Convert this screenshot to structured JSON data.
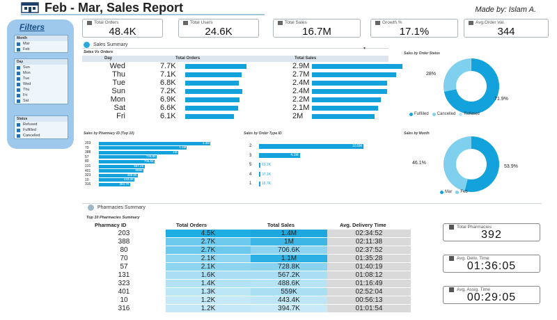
{
  "header": {
    "title": "Feb - Mar, Sales Report",
    "made_by": "Made by: Islam A."
  },
  "filters": {
    "title": "Filters",
    "month": {
      "heading": "Month",
      "items": [
        "Mar",
        "Feb"
      ]
    },
    "day": {
      "heading": "Day",
      "items": [
        "Sun",
        "Mon",
        "Tue",
        "Wed",
        "Thu",
        "Fri",
        "Sat"
      ]
    },
    "status": {
      "heading": "Status",
      "items": [
        "Refused",
        "Fulfilled",
        "Cancelled"
      ]
    }
  },
  "kpis": [
    {
      "label": "Total Orders",
      "value": "48.4K"
    },
    {
      "label": "Total Users",
      "value": "24.6K"
    },
    {
      "label": "Total Sales",
      "value": "16.7M"
    },
    {
      "label": "Growth %",
      "value": "17.1%"
    },
    {
      "label": "Avg.Order Val.",
      "value": "344"
    }
  ],
  "sales_summary": {
    "title": "Sales Summary",
    "subtitle": "Sales Vs Orders",
    "headers": {
      "day": "Day",
      "orders": "Total Orders",
      "sales": "Total Sales"
    },
    "rows": [
      {
        "day": "Wed",
        "orders": "7.7K",
        "orders_frac": 1.0,
        "sales": "2.9M",
        "sales_frac": 1.0
      },
      {
        "day": "Thu",
        "orders": "7.1K",
        "orders_frac": 0.92,
        "sales": "2.7M",
        "sales_frac": 0.93
      },
      {
        "day": "Tue",
        "orders": "6.8K",
        "orders_frac": 0.88,
        "sales": "2.4M",
        "sales_frac": 0.83
      },
      {
        "day": "Sun",
        "orders": "7.2K",
        "orders_frac": 0.93,
        "sales": "2.4M",
        "sales_frac": 0.83
      },
      {
        "day": "Mon",
        "orders": "6.9K",
        "orders_frac": 0.89,
        "sales": "2.2M",
        "sales_frac": 0.76
      },
      {
        "day": "Sat",
        "orders": "6.6K",
        "orders_frac": 0.86,
        "sales": "2.1M",
        "sales_frac": 0.73
      },
      {
        "day": "Fri",
        "orders": "6.1K",
        "orders_frac": 0.79,
        "sales": "2M",
        "sales_frac": 0.69
      }
    ]
  },
  "order_status": {
    "title": "Sales by Order Status",
    "slices": [
      {
        "name": "Fulfilled",
        "value": 71.9,
        "label": "71.9%",
        "color": "#14a2dc"
      },
      {
        "name": "Cancelled",
        "value": 28.0,
        "label": "28%",
        "color": "#7fd0ee"
      },
      {
        "name": "Refused",
        "value": 0.1,
        "label": "",
        "color": "#b8e4f5"
      }
    ]
  },
  "by_month": {
    "title": "Sales by Month",
    "slices": [
      {
        "name": "Mar",
        "value": 53.9,
        "label": "53.9%",
        "color": "#14a2dc"
      },
      {
        "name": "Feb",
        "value": 46.1,
        "label": "46.1%",
        "color": "#7fd0ee"
      }
    ]
  },
  "by_pharmacy": {
    "title": "Sales by Pharmacy ID (Top 10)",
    "rows": [
      {
        "id": "203",
        "value": "1.4M",
        "frac": 1.0
      },
      {
        "id": "70",
        "value": "1.1M",
        "frac": 0.79
      },
      {
        "id": "388",
        "value": "1M",
        "frac": 0.71
      },
      {
        "id": "57",
        "value": "728.8K",
        "frac": 0.52
      },
      {
        "id": "80",
        "value": "706.6K",
        "frac": 0.5
      },
      {
        "id": "131",
        "value": "567.2K",
        "frac": 0.41
      },
      {
        "id": "401",
        "value": "559K",
        "frac": 0.4
      },
      {
        "id": "323",
        "value": "488.6K",
        "frac": 0.35
      },
      {
        "id": "10",
        "value": "443.4K",
        "frac": 0.32
      },
      {
        "id": "316",
        "value": "394.7K",
        "frac": 0.28
      }
    ]
  },
  "by_order_type": {
    "title": "Sales by Order Type ID",
    "rows": [
      {
        "id": "2",
        "value": "10.5M",
        "frac": 1.0
      },
      {
        "id": "3",
        "value": "4.1M",
        "frac": 0.39
      },
      {
        "id": "5",
        "value": "63.2K",
        "frac": 0.006
      },
      {
        "id": "4",
        "value": "37.1K",
        "frac": 0.004
      },
      {
        "id": "1",
        "value": "16.7K",
        "frac": 0.002
      }
    ]
  },
  "pharmacies": {
    "title": "Pharmacies Summary",
    "subtitle": "Top 10 Pharmacies Summary",
    "headers": {
      "id": "Pharmacy ID",
      "orders": "Total Orders",
      "sales": "Total Sales",
      "delivery": "Avg. Delivery Time"
    },
    "rows": [
      {
        "id": "203",
        "orders": "4.5K",
        "sales": "1.4M",
        "delivery": "02:34:52",
        "o_color": "#1faee3",
        "s_color": "#1da7de"
      },
      {
        "id": "388",
        "orders": "2.7K",
        "sales": "1M",
        "delivery": "02:11:38",
        "o_color": "#6dc9ec",
        "s_color": "#3db6e6"
      },
      {
        "id": "80",
        "orders": "2.7K",
        "sales": "706.6K",
        "delivery": "02:37:52",
        "o_color": "#6dc9ec",
        "s_color": "#8ed4f0"
      },
      {
        "id": "70",
        "orders": "2.1K",
        "sales": "1.1M",
        "delivery": "01:35:28",
        "o_color": "#8ed5f0",
        "s_color": "#2cb0e3"
      },
      {
        "id": "57",
        "orders": "2.1K",
        "sales": "728.8K",
        "delivery": "01:40:19",
        "o_color": "#8ed5f0",
        "s_color": "#8ad3ef"
      },
      {
        "id": "131",
        "orders": "1.6K",
        "sales": "567.2K",
        "delivery": "01:08:12",
        "o_color": "#a9def4",
        "s_color": "#a9def4"
      },
      {
        "id": "323",
        "orders": "1.4K",
        "sales": "488.6K",
        "delivery": "01:16:49",
        "o_color": "#b4e2f5",
        "s_color": "#b6e3f5"
      },
      {
        "id": "401",
        "orders": "1.3K",
        "sales": "559K",
        "delivery": "02:52:04",
        "o_color": "#bce5f6",
        "s_color": "#aadef3"
      },
      {
        "id": "10",
        "orders": "1.2K",
        "sales": "443.4K",
        "delivery": "00:56:13",
        "o_color": "#c4e8f7",
        "s_color": "#bfe6f6"
      },
      {
        "id": "316",
        "orders": "1.2K",
        "sales": "394.7K",
        "delivery": "01:01:54",
        "o_color": "#c4e8f7",
        "s_color": "#c8eaf8"
      }
    ]
  },
  "side_cards": [
    {
      "label": "Total Pharmacies",
      "value": "392"
    },
    {
      "label": "Avg. Deliv. Time",
      "value": "01:36:05"
    },
    {
      "label": "Avg. Assig. Time",
      "value": "00:29:05"
    }
  ]
}
